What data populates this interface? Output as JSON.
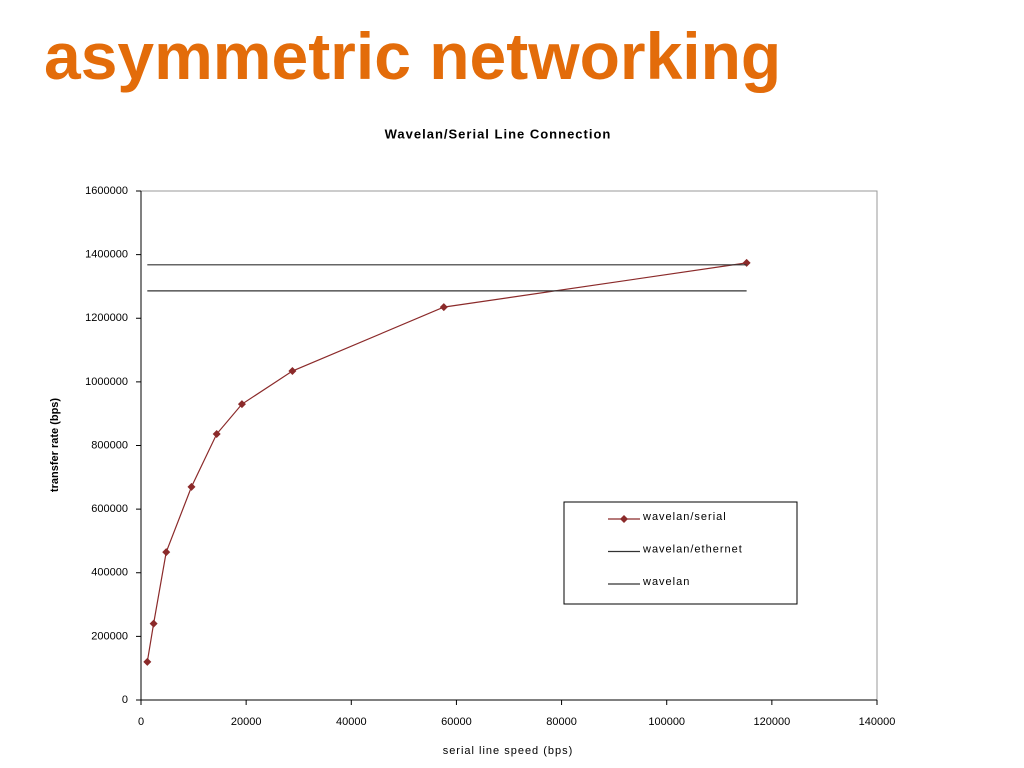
{
  "heading": "asymmetric networking",
  "chart_data": {
    "type": "line",
    "title": "Wavelan/Serial Line Connection",
    "x_label": "serial line speed (bps)",
    "y_label": "transfer rate (bps)",
    "xlim": [
      0,
      140000
    ],
    "xticks": [
      0,
      20000,
      40000,
      60000,
      80000,
      100000,
      120000,
      140000
    ],
    "ylim": [
      0,
      1600000
    ],
    "yticks": [
      0,
      200000,
      400000,
      600000,
      800000,
      1000000,
      1200000,
      1400000,
      1600000
    ],
    "legend": "lower right",
    "grid": false,
    "series": [
      {
        "name": "wavelan/serial",
        "color": "#8b2a2a",
        "marker": "diamond",
        "x": [
          1200,
          2400,
          4800,
          9600,
          14400,
          19200,
          28800,
          57600,
          115200
        ],
        "values": [
          120000,
          240000,
          465000,
          670000,
          836000,
          930000,
          1034000,
          1235000,
          1374000
        ]
      },
      {
        "name": "wavelan/ethernet",
        "color": "#333333",
        "marker": "none",
        "x": [
          1200,
          115200
        ],
        "values": [
          1368000,
          1368000
        ]
      },
      {
        "name": "wavelan",
        "color": "#333333",
        "marker": "none",
        "x": [
          1200,
          115200
        ],
        "values": [
          1286000,
          1286000
        ]
      }
    ]
  }
}
